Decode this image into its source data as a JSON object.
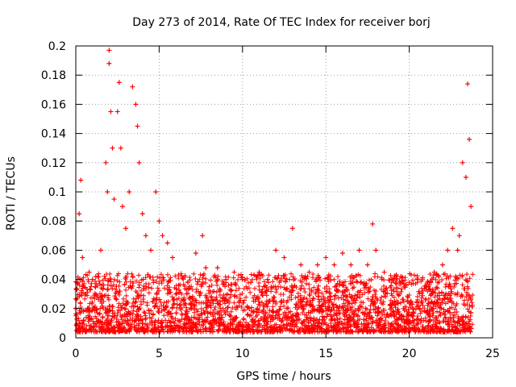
{
  "chart_data": {
    "type": "scatter",
    "title": "Day 273 of 2014, Rate Of TEC Index for receiver borj",
    "xlabel": "GPS time / hours",
    "ylabel": "ROTI / TECUs",
    "xlim": [
      0,
      25
    ],
    "ylim": [
      0,
      0.2
    ],
    "xticks": [
      "0",
      "5",
      "10",
      "15",
      "20",
      "25"
    ],
    "yticks": [
      "0",
      "0.02",
      "0.04",
      "0.06",
      "0.08",
      "0.1",
      "0.12",
      "0.14",
      "0.16",
      "0.18",
      "0.2"
    ],
    "grid": true,
    "marker": "+",
    "color": "#ff0000",
    "series": [
      {
        "x": [
          0.0,
          0.1,
          0.2,
          0.3,
          0.4,
          0.6,
          0.8,
          1.0,
          1.2,
          1.5,
          1.8,
          1.9,
          2.0,
          2.0,
          2.1,
          2.2,
          2.3,
          2.5,
          2.6,
          2.7,
          2.8,
          3.0,
          3.2,
          3.4,
          3.6,
          3.7,
          3.8,
          4.0,
          4.2,
          4.5,
          4.8,
          5.0,
          5.2,
          5.5,
          5.8,
          6.0,
          6.3,
          6.8,
          7.2,
          7.6,
          7.8,
          8.0,
          8.5,
          9.0,
          9.5,
          10.0,
          10.5,
          11.0,
          11.5,
          12.0,
          12.5,
          13.0,
          13.5,
          14.0,
          14.5,
          15.0,
          15.5,
          16.0,
          16.5,
          17.0,
          17.5,
          17.8,
          18.0,
          18.5,
          19.0,
          19.5,
          20.0,
          20.5,
          21.0,
          21.5,
          22.0,
          22.3,
          22.6,
          22.9,
          23.0,
          23.2,
          23.4,
          23.5,
          23.6,
          23.7
        ],
        "y": [
          0.02,
          0.037,
          0.085,
          0.108,
          0.055,
          0.03,
          0.045,
          0.04,
          0.042,
          0.06,
          0.12,
          0.1,
          0.197,
          0.188,
          0.155,
          0.13,
          0.095,
          0.155,
          0.175,
          0.13,
          0.09,
          0.075,
          0.1,
          0.172,
          0.16,
          0.145,
          0.12,
          0.085,
          0.07,
          0.06,
          0.1,
          0.08,
          0.07,
          0.065,
          0.055,
          0.03,
          0.02,
          0.035,
          0.058,
          0.07,
          0.048,
          0.035,
          0.048,
          0.04,
          0.045,
          0.04,
          0.038,
          0.045,
          0.04,
          0.06,
          0.055,
          0.075,
          0.05,
          0.045,
          0.05,
          0.055,
          0.05,
          0.058,
          0.05,
          0.06,
          0.05,
          0.078,
          0.06,
          0.045,
          0.04,
          0.042,
          0.038,
          0.04,
          0.035,
          0.045,
          0.05,
          0.06,
          0.075,
          0.06,
          0.07,
          0.12,
          0.11,
          0.174,
          0.136,
          0.09
        ]
      }
    ]
  }
}
